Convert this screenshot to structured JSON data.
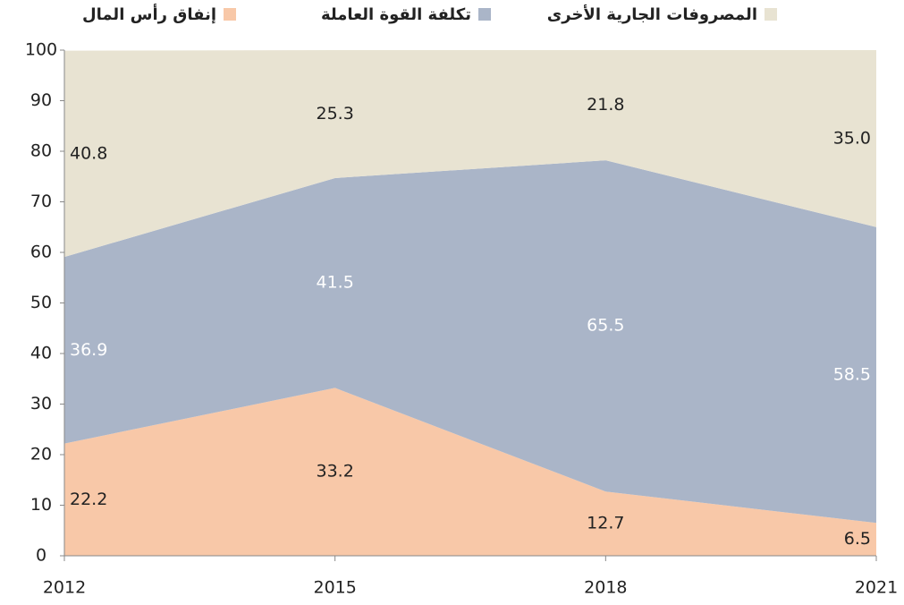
{
  "chart_data": {
    "type": "stacked_area",
    "x": [
      2012,
      2015,
      2018,
      2021
    ],
    "xlim": [
      2012,
      2021
    ],
    "xticks": [
      2012,
      2015,
      2018,
      2021
    ],
    "ylim": [
      0,
      100
    ],
    "yticks": [
      0,
      10,
      20,
      30,
      40,
      50,
      60,
      70,
      80,
      90,
      100
    ],
    "series": [
      {
        "name": "إنفاق رأس المال",
        "color": "#f8c8a8",
        "label_color": "#222222",
        "values": [
          22.2,
          33.2,
          12.7,
          6.5
        ]
      },
      {
        "name": "تكلفة القوة العاملة",
        "color": "#aab5c8",
        "label_color": "#ffffff",
        "values": [
          36.9,
          41.5,
          65.5,
          58.5
        ]
      },
      {
        "name": "المصروفات الجارية الأخرى",
        "color": "#e8e3d2",
        "label_color": "#222222",
        "values": [
          40.8,
          25.3,
          21.8,
          35
        ],
        "value_labels": [
          "40.8",
          "25.3",
          "21.8",
          "35.0"
        ]
      }
    ]
  }
}
